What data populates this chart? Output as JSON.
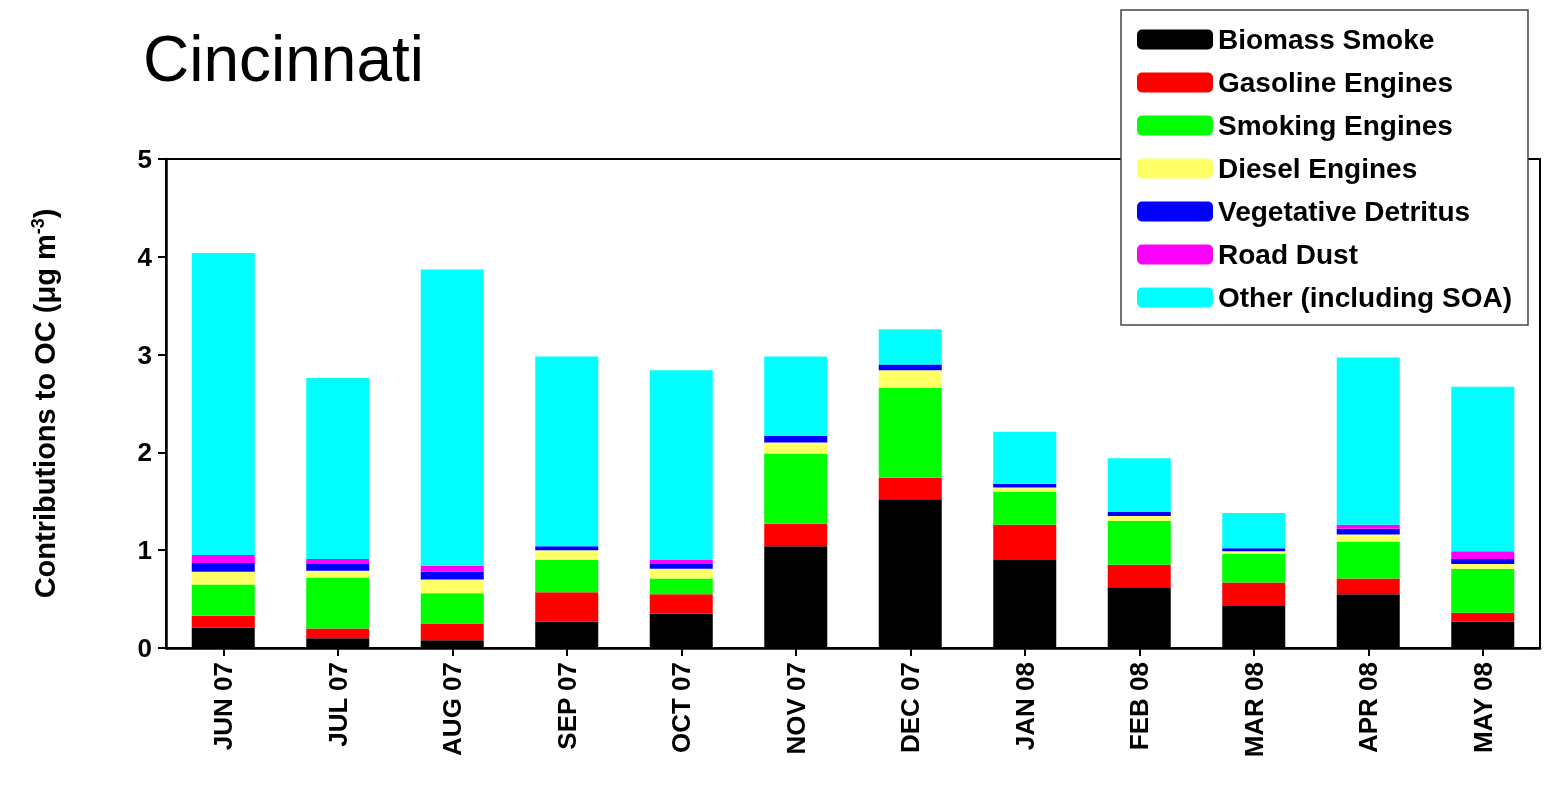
{
  "chart_data": {
    "type": "bar",
    "title": "Cincinnati",
    "ylabel": "Contributions to OC (μg m$^{-3}$)",
    "categories": [
      "JUN 07",
      "JUL 07",
      "AUG 07",
      "SEP 07",
      "OCT 07",
      "NOV 07",
      "DEC 07",
      "JAN 08",
      "FEB 08",
      "MAR 08",
      "APR 08",
      "MAY 08"
    ],
    "stacked": true,
    "ylim": [
      0,
      5
    ],
    "yticks": [
      0,
      1,
      2,
      3,
      4,
      5
    ],
    "grid": false,
    "legend": "top right",
    "series": [
      {
        "name": "Biomass Smoke",
        "color": "#000000",
        "values": [
          0.21,
          0.1,
          0.08,
          0.27,
          0.35,
          1.04,
          1.52,
          0.9,
          0.62,
          0.43,
          0.55,
          0.27
        ]
      },
      {
        "name": "Gasoline Engines",
        "color": "#ff0000",
        "values": [
          0.12,
          0.1,
          0.17,
          0.3,
          0.2,
          0.23,
          0.22,
          0.36,
          0.23,
          0.24,
          0.16,
          0.09
        ]
      },
      {
        "name": "Smoking Engines",
        "color": "#00ff00",
        "values": [
          0.32,
          0.52,
          0.31,
          0.33,
          0.16,
          0.72,
          0.92,
          0.34,
          0.45,
          0.29,
          0.38,
          0.45
        ]
      },
      {
        "name": "Diesel Engines",
        "color": "#ffff66",
        "values": [
          0.13,
          0.07,
          0.14,
          0.1,
          0.1,
          0.11,
          0.18,
          0.04,
          0.05,
          0.03,
          0.07,
          0.05
        ]
      },
      {
        "name": "Vegetative Detritus",
        "color": "#0000ff",
        "values": [
          0.09,
          0.07,
          0.08,
          0.04,
          0.05,
          0.07,
          0.06,
          0.04,
          0.04,
          0.03,
          0.06,
          0.05
        ]
      },
      {
        "name": "Road Dust",
        "color": "#ff00ff",
        "values": [
          0.08,
          0.05,
          0.06,
          0,
          0.04,
          0,
          0,
          0,
          0,
          0,
          0.04,
          0.08
        ]
      },
      {
        "name": "Other (including SOA)",
        "color": "#00ffff",
        "values": [
          3.09,
          1.85,
          3.03,
          1.94,
          1.94,
          0.81,
          0.36,
          0.53,
          0.55,
          0.36,
          1.71,
          1.68
        ]
      }
    ]
  }
}
